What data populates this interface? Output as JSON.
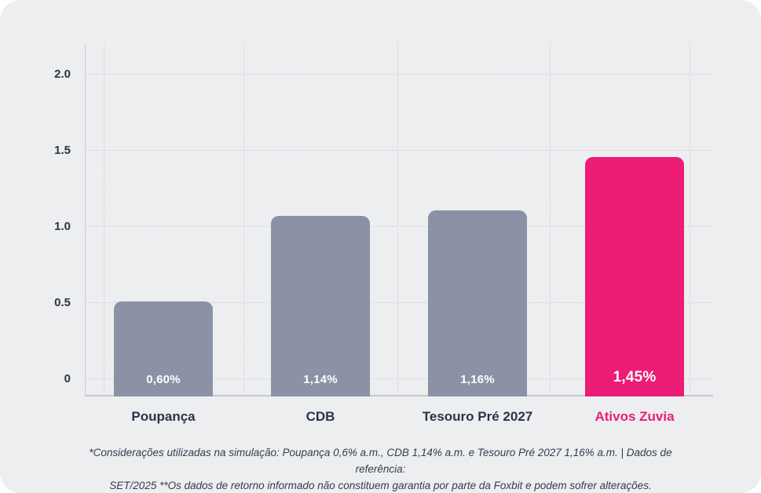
{
  "chart_data": {
    "type": "bar",
    "title": "",
    "xlabel": "",
    "ylabel": "",
    "categories": [
      "Poupança",
      "CDB",
      "Tesouro Pré 2027",
      "Ativos Zuvia"
    ],
    "values": [
      0.6,
      1.14,
      1.16,
      1.45
    ],
    "bar_labels": [
      "0,60%",
      "1,14%",
      "1,16%",
      "1,45%"
    ],
    "display_heights": [
      0.51,
      1.07,
      1.11,
      1.46
    ],
    "ylim": [
      0,
      2.0
    ],
    "yticks": [
      0,
      0.5,
      1.0,
      1.5,
      2.0
    ],
    "ytick_labels": [
      "0",
      "0.5",
      "1.0",
      "1.5",
      "2.0"
    ],
    "grid": "dashed",
    "legend": "none",
    "highlight_index": 3,
    "colors": {
      "bar": "#8b92a5",
      "highlight": "#ec1c77",
      "grid": "#d3d5db",
      "axis": "#c6c9d0",
      "text": "#2e3246",
      "bar_label_text": "#ffffff",
      "background": "#edeef0"
    }
  },
  "footnote": {
    "line1": "*Considerações utilizadas na simulação: Poupança 0,6% a.m., CDB 1,14% a.m. e Tesouro Pré 2027 1,16% a.m. | Dados de referência:",
    "line2": "SET/2025 **Os dados de retorno informado não constituem garantia por parte da Foxbit e podem sofrer alterações."
  }
}
